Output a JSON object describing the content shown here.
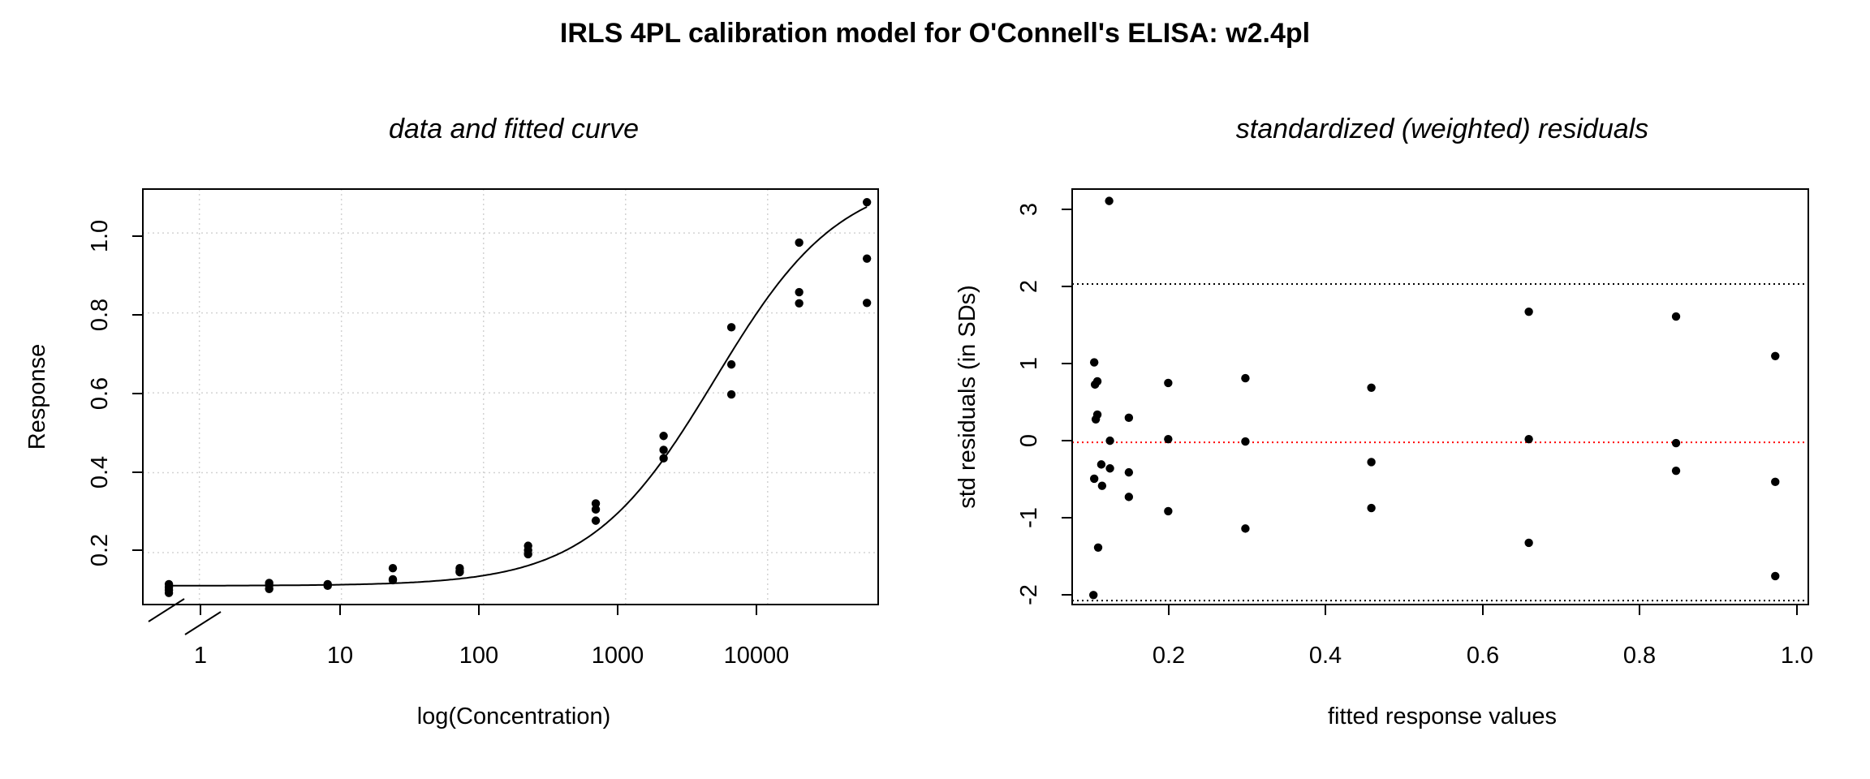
{
  "figure_title": "IRLS 4PL calibration model for O'Connell's ELISA: w2.4pl",
  "chart_data": [
    {
      "type": "scatter",
      "title": "data and fitted curve",
      "xlabel": "log(Concentration)",
      "ylabel": "Response",
      "x_scale": "log10",
      "x_ticks": [
        1,
        10,
        100,
        1000,
        10000
      ],
      "x_tick_labels": [
        "1",
        "10",
        "100",
        "1000",
        "10000"
      ],
      "xlim": [
        0.4,
        60000
      ],
      "y_ticks": [
        0.2,
        0.4,
        0.6,
        0.8,
        1.0
      ],
      "y_tick_labels": [
        "0.2",
        "0.4",
        "0.6",
        "0.8",
        "1.0"
      ],
      "ylim": [
        0.07,
        1.11
      ],
      "grid": true,
      "axis_break": "left of 1",
      "points": [
        {
          "x": 0.61,
          "y": 0.121
        },
        {
          "x": 0.61,
          "y": 0.113
        },
        {
          "x": 0.61,
          "y": 0.106
        },
        {
          "x": 0.61,
          "y": 0.099
        },
        {
          "x": 3.1,
          "y": 0.124
        },
        {
          "x": 3.1,
          "y": 0.118
        },
        {
          "x": 3.1,
          "y": 0.109
        },
        {
          "x": 8,
          "y": 0.121
        },
        {
          "x": 8,
          "y": 0.117
        },
        {
          "x": 23,
          "y": 0.161
        },
        {
          "x": 23,
          "y": 0.133
        },
        {
          "x": 23,
          "y": 0.131
        },
        {
          "x": 68,
          "y": 0.161
        },
        {
          "x": 68,
          "y": 0.154
        },
        {
          "x": 68,
          "y": 0.151
        },
        {
          "x": 206,
          "y": 0.217
        },
        {
          "x": 206,
          "y": 0.206
        },
        {
          "x": 206,
          "y": 0.196
        },
        {
          "x": 617,
          "y": 0.323
        },
        {
          "x": 617,
          "y": 0.308
        },
        {
          "x": 617,
          "y": 0.28
        },
        {
          "x": 1852,
          "y": 0.492
        },
        {
          "x": 1852,
          "y": 0.457
        },
        {
          "x": 1852,
          "y": 0.436
        },
        {
          "x": 5556,
          "y": 0.764
        },
        {
          "x": 5556,
          "y": 0.671
        },
        {
          "x": 5556,
          "y": 0.596
        },
        {
          "x": 16667,
          "y": 0.976
        },
        {
          "x": 16667,
          "y": 0.852
        },
        {
          "x": 16667,
          "y": 0.824
        },
        {
          "x": 50000,
          "y": 1.077
        },
        {
          "x": 50000,
          "y": 0.936
        },
        {
          "x": 50000,
          "y": 0.825
        }
      ],
      "fitted_curve": {
        "model": "4PL",
        "bottom": 0.117,
        "top": 1.15,
        "ec50": 4250,
        "slope": 0.98,
        "x_range": [
          0.61,
          50000
        ]
      }
    },
    {
      "type": "scatter",
      "title": "standardized (weighted) residuals",
      "xlabel": "fitted response values",
      "ylabel": "std residuals (in SDs)",
      "x_ticks": [
        0.2,
        0.4,
        0.6,
        0.8,
        1.0
      ],
      "x_tick_labels": [
        "0.2",
        "0.4",
        "0.6",
        "0.8",
        "1.0"
      ],
      "xlim": [
        0.085,
        1.02
      ],
      "y_ticks": [
        -2,
        -1,
        0,
        1,
        2,
        3
      ],
      "y_tick_labels": [
        "-2",
        "-1",
        "0",
        "1",
        "2",
        "3"
      ],
      "ylim": [
        -2.05,
        3.2
      ],
      "reference_lines": [
        {
          "y": 2,
          "style": "dotted",
          "color": "#000000"
        },
        {
          "y": -2,
          "style": "dotted",
          "color": "#000000"
        },
        {
          "y": 0,
          "style": "dotted",
          "color": "#ff0000"
        }
      ],
      "points": [
        {
          "x": 0.113,
          "y": 1.01
        },
        {
          "x": 0.114,
          "y": 0.73
        },
        {
          "x": 0.117,
          "y": 0.77
        },
        {
          "x": 0.115,
          "y": 0.29
        },
        {
          "x": 0.117,
          "y": 0.35
        },
        {
          "x": 0.113,
          "y": -0.46
        },
        {
          "x": 0.112,
          "y": -1.93
        },
        {
          "x": 0.118,
          "y": -1.33
        },
        {
          "x": 0.122,
          "y": -0.28
        },
        {
          "x": 0.123,
          "y": -0.55
        },
        {
          "x": 0.132,
          "y": 3.05
        },
        {
          "x": 0.133,
          "y": 0.02
        },
        {
          "x": 0.133,
          "y": -0.33
        },
        {
          "x": 0.157,
          "y": 0.31
        },
        {
          "x": 0.157,
          "y": -0.38
        },
        {
          "x": 0.157,
          "y": -0.69
        },
        {
          "x": 0.207,
          "y": 0.75
        },
        {
          "x": 0.207,
          "y": 0.04
        },
        {
          "x": 0.207,
          "y": -0.87
        },
        {
          "x": 0.305,
          "y": 0.81
        },
        {
          "x": 0.305,
          "y": 0.01
        },
        {
          "x": 0.305,
          "y": -1.09
        },
        {
          "x": 0.465,
          "y": 0.69
        },
        {
          "x": 0.465,
          "y": -0.25
        },
        {
          "x": 0.465,
          "y": -0.83
        },
        {
          "x": 0.665,
          "y": 1.65
        },
        {
          "x": 0.665,
          "y": 0.04
        },
        {
          "x": 0.665,
          "y": -1.27
        },
        {
          "x": 0.852,
          "y": 1.59
        },
        {
          "x": 0.852,
          "y": -0.01
        },
        {
          "x": 0.852,
          "y": -0.36
        },
        {
          "x": 0.978,
          "y": 1.09
        },
        {
          "x": 0.978,
          "y": -0.5
        },
        {
          "x": 0.978,
          "y": -1.69
        }
      ]
    }
  ]
}
